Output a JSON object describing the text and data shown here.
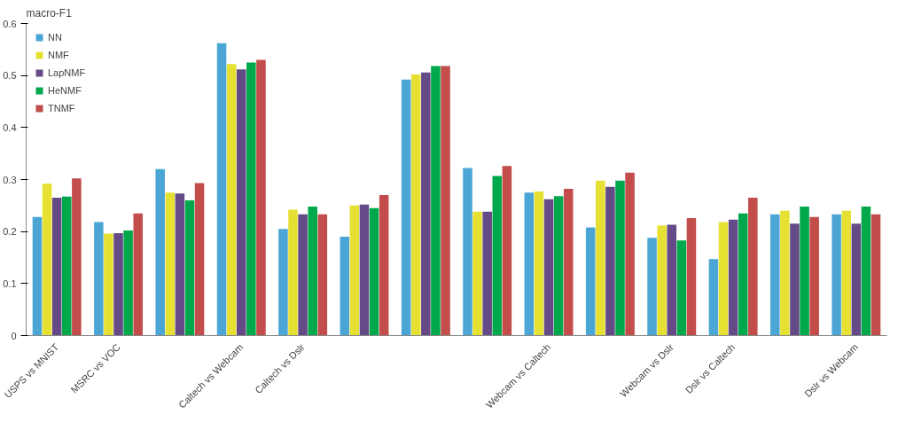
{
  "chart_data": {
    "type": "bar",
    "ylabel": "macro-F1",
    "categories": [
      "USPS vs MNIST",
      "MSRC vs VOC",
      null,
      "Caltech vs Webcam",
      "Caltech vs Dslr",
      null,
      null,
      null,
      "Webcam vs Caltech",
      null,
      "Webcam vs Dslr",
      "Dslr vs Caltech",
      null,
      "Dslr vs Webcam"
    ],
    "series": [
      {
        "name": "NN",
        "color": "#4ba6d6",
        "values": [
          0.228,
          0.218,
          0.32,
          0.562,
          0.205,
          0.19,
          0.492,
          0.322,
          0.275,
          0.208,
          0.188,
          0.147,
          0.233,
          0.233
        ]
      },
      {
        "name": "NMF",
        "color": "#e6e033",
        "values": [
          0.292,
          0.196,
          0.275,
          0.522,
          0.242,
          0.25,
          0.502,
          0.238,
          0.277,
          0.298,
          0.212,
          0.218,
          0.24,
          0.24
        ]
      },
      {
        "name": "LapNMF",
        "color": "#644a86",
        "values": [
          0.265,
          0.197,
          0.273,
          0.512,
          0.233,
          0.252,
          0.506,
          0.238,
          0.262,
          0.286,
          0.213,
          0.223,
          0.215,
          0.215
        ]
      },
      {
        "name": "HeNMF",
        "color": "#00a84c",
        "values": [
          0.267,
          0.202,
          0.26,
          0.525,
          0.248,
          0.245,
          0.518,
          0.307,
          0.268,
          0.298,
          0.183,
          0.235,
          0.248,
          0.248
        ]
      },
      {
        "name": "TNMF",
        "color": "#c24d4b",
        "values": [
          0.302,
          0.235,
          0.293,
          0.53,
          0.233,
          0.27,
          0.518,
          0.326,
          0.282,
          0.313,
          0.226,
          0.265,
          0.228,
          0.233
        ]
      }
    ],
    "ylim": [
      0,
      0.6
    ],
    "yticks": [
      0,
      0.1,
      0.2,
      0.3,
      0.4,
      0.5,
      0.6
    ],
    "grid": false,
    "legend": "top left"
  }
}
